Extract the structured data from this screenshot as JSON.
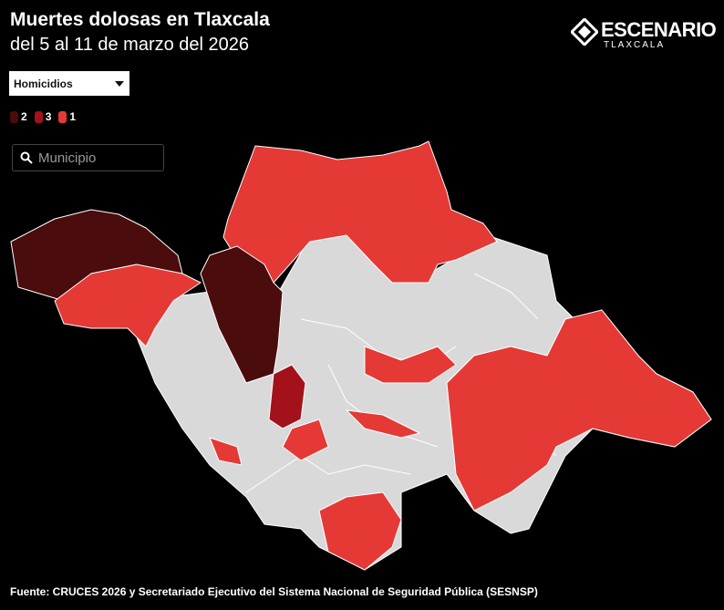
{
  "header": {
    "title": "Muertes dolosas en Tlaxcala",
    "subtitle": "del 5 al 11 de marzo del 2026"
  },
  "logo": {
    "name": "ESCENARIO",
    "tagline": "TLAXCALA"
  },
  "dropdown": {
    "selected": "Homicidios"
  },
  "legend": [
    {
      "label": "2",
      "color": "#4a0c0c"
    },
    {
      "label": "3",
      "color": "#a3121a"
    },
    {
      "label": "1",
      "color": "#e53935"
    }
  ],
  "search": {
    "placeholder": "Municipio"
  },
  "footer": {
    "source": "Fuente: CRUCES 2026 y Secretariado Ejecutivo del Sistema Nacional de Seguridad Pública (SESNSP)"
  }
}
